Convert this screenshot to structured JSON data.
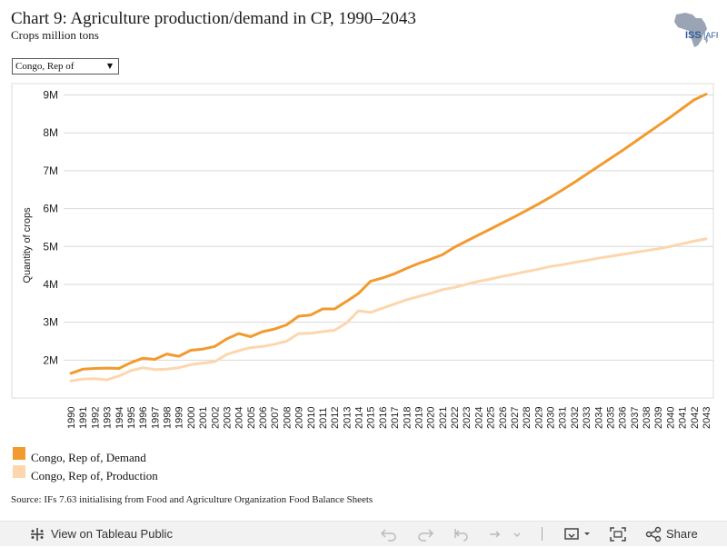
{
  "header": {
    "title": "Chart 9: Agriculture production/demand in CP, 1990–2043",
    "subtitle": "Crops million tons",
    "logo_text": "ISS AFRICA"
  },
  "filter": {
    "selected": "Congo, Rep of"
  },
  "chart_data": {
    "type": "line",
    "ylabel": "Quantity of crops",
    "xlabel": "",
    "ylim": [
      1.0,
      9.3
    ],
    "yticks": [
      "2M",
      "3M",
      "4M",
      "5M",
      "6M",
      "7M",
      "8M",
      "9M"
    ],
    "x": [
      "1990",
      "1991",
      "1992",
      "1993",
      "1994",
      "1995",
      "1996",
      "1997",
      "1998",
      "1999",
      "2000",
      "2001",
      "2002",
      "2003",
      "2004",
      "2005",
      "2006",
      "2007",
      "2008",
      "2009",
      "2010",
      "2011",
      "2012",
      "2013",
      "2014",
      "2015",
      "2016",
      "2017",
      "2018",
      "2019",
      "2020",
      "2021",
      "2022",
      "2023",
      "2024",
      "2025",
      "2026",
      "2027",
      "2028",
      "2029",
      "2030",
      "2031",
      "2032",
      "2033",
      "2034",
      "2035",
      "2036",
      "2037",
      "2038",
      "2039",
      "2040",
      "2041",
      "2042",
      "2043"
    ],
    "grid": true,
    "series": [
      {
        "name": "Congo, Rep of, Demand",
        "color": "#f39a2e",
        "values": [
          1.65,
          1.76,
          1.78,
          1.79,
          1.78,
          1.93,
          2.05,
          2.02,
          2.16,
          2.1,
          2.26,
          2.29,
          2.36,
          2.56,
          2.7,
          2.62,
          2.75,
          2.82,
          2.93,
          3.16,
          3.19,
          3.35,
          3.35,
          3.55,
          3.76,
          4.08,
          4.17,
          4.28,
          4.42,
          4.55,
          4.66,
          4.78,
          4.98,
          5.14,
          5.3,
          5.46,
          5.62,
          5.78,
          5.95,
          6.12,
          6.3,
          6.49,
          6.69,
          6.9,
          7.11,
          7.32,
          7.53,
          7.75,
          7.97,
          8.19,
          8.41,
          8.64,
          8.87,
          9.02
        ]
      },
      {
        "name": "Congo, Rep of, Production",
        "color": "#fdd6ad",
        "values": [
          1.45,
          1.5,
          1.51,
          1.48,
          1.58,
          1.72,
          1.8,
          1.75,
          1.76,
          1.8,
          1.88,
          1.92,
          1.96,
          2.15,
          2.25,
          2.33,
          2.36,
          2.42,
          2.5,
          2.7,
          2.71,
          2.75,
          2.79,
          2.98,
          3.3,
          3.26,
          3.37,
          3.48,
          3.59,
          3.68,
          3.76,
          3.86,
          3.92,
          4.0,
          4.08,
          4.14,
          4.21,
          4.27,
          4.34,
          4.4,
          4.47,
          4.52,
          4.58,
          4.63,
          4.69,
          4.74,
          4.79,
          4.84,
          4.89,
          4.94,
          5.0,
          5.07,
          5.14,
          5.2
        ]
      }
    ]
  },
  "legend": {
    "items": [
      {
        "label": "Congo, Rep of, Demand",
        "color": "#f39a2e"
      },
      {
        "label": "Congo, Rep of, Production",
        "color": "#fdd6ad"
      }
    ]
  },
  "source": "Source: IFs 7.63 initialising from Food and Agriculture Organization Food Balance Sheets",
  "toolbar": {
    "view_label": "View on Tableau Public",
    "share_label": "Share",
    "icons": [
      "tableau-icon",
      "undo-icon",
      "redo-icon",
      "revert-icon",
      "refresh-icon",
      "download-icon",
      "fullscreen-icon",
      "share-icon"
    ]
  }
}
